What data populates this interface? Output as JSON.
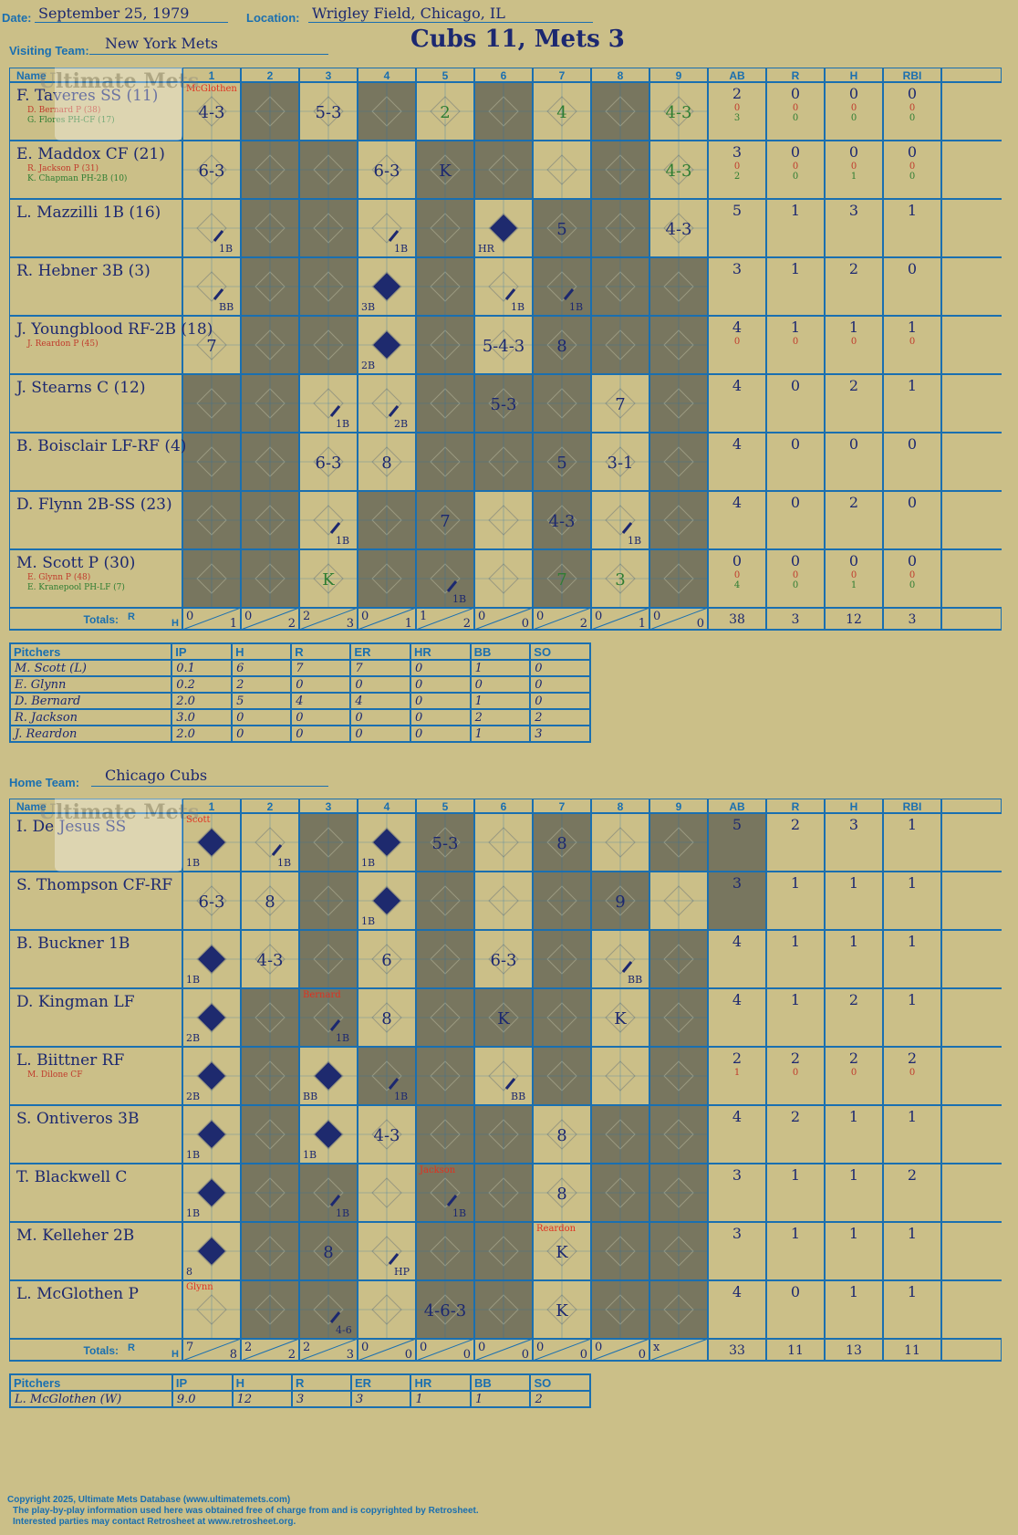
{
  "header": {
    "date_label": "Date:",
    "date": "September 25, 1979",
    "location_label": "Location:",
    "location": "Wrigley Field, Chicago, IL",
    "visiting_label": "Visiting Team:",
    "visiting_team": "New York Mets",
    "home_label": "Home Team:",
    "home_team": "Chicago Cubs",
    "final": "Cubs 11, Mets 3",
    "watermark": "Ultimate Mets Database ultimatemets.com"
  },
  "grid_headers": {
    "name": "Name",
    "innings": [
      "1",
      "2",
      "3",
      "4",
      "5",
      "6",
      "7",
      "8",
      "9"
    ],
    "stats": [
      "AB",
      "R",
      "H",
      "RBI"
    ],
    "totals": "Totals:",
    "r": "R",
    "h": "H"
  },
  "visitors": {
    "batters": [
      {
        "name": "F. Taveres SS (11)",
        "subs": [
          "D. Bernard P (38)",
          "G. Flores PH-CF (17)"
        ],
        "stats": [
          [
            "2",
            "0",
            "0",
            "0"
          ],
          [
            "0",
            "0",
            "0",
            "0"
          ],
          [
            "3",
            "0",
            "0",
            "0"
          ]
        ]
      },
      {
        "name": "E. Maddox CF (21)",
        "subs": [
          "R. Jackson P (31)",
          "K. Chapman PH-2B (10)"
        ],
        "stats": [
          [
            "3",
            "0",
            "0",
            "0"
          ],
          [
            "0",
            "0",
            "0",
            "0"
          ],
          [
            "2",
            "0",
            "1",
            "0"
          ]
        ]
      },
      {
        "name": "L. Mazzilli 1B (16)",
        "subs": [],
        "stats": [
          [
            "5",
            "1",
            "3",
            "1"
          ]
        ]
      },
      {
        "name": "R. Hebner 3B (3)",
        "subs": [],
        "stats": [
          [
            "3",
            "1",
            "2",
            "0"
          ]
        ]
      },
      {
        "name": "J. Youngblood RF-2B (18)",
        "subs": [
          "J. Reardon P (45)"
        ],
        "stats": [
          [
            "4",
            "1",
            "1",
            "1"
          ],
          [
            "0",
            "0",
            "0",
            "0"
          ]
        ]
      },
      {
        "name": "J. Stearns C (12)",
        "subs": [],
        "stats": [
          [
            "4",
            "0",
            "2",
            "1"
          ]
        ]
      },
      {
        "name": "B. Boisclair LF-RF (4)",
        "subs": [],
        "stats": [
          [
            "4",
            "0",
            "0",
            "0"
          ]
        ]
      },
      {
        "name": "D. Flynn 2B-SS (23)",
        "subs": [],
        "stats": [
          [
            "4",
            "0",
            "2",
            "0"
          ]
        ]
      },
      {
        "name": "M. Scott P (30)",
        "subs": [
          "E. Glynn P (48)",
          "E. Kranepool PH-LF (7)"
        ],
        "stats": [
          [
            "0",
            "0",
            "0",
            "0"
          ],
          [
            "0",
            "0",
            "0",
            "0"
          ],
          [
            "4",
            "0",
            "1",
            "0"
          ]
        ]
      }
    ],
    "totals": {
      "innings": [
        [
          "0",
          "1"
        ],
        [
          "0",
          "2"
        ],
        [
          "2",
          "3"
        ],
        [
          "0",
          "1"
        ],
        [
          "1",
          "2"
        ],
        [
          "0",
          "0"
        ],
        [
          "0",
          "2"
        ],
        [
          "0",
          "1"
        ],
        [
          "0",
          "0"
        ]
      ],
      "stats": [
        "38",
        "3",
        "12",
        "3"
      ]
    },
    "pitchers": [
      [
        "M. Scott (L)",
        "0.1",
        "6",
        "7",
        "7",
        "0",
        "1",
        "0"
      ],
      [
        "E. Glynn",
        "0.2",
        "2",
        "0",
        "0",
        "0",
        "0",
        "0"
      ],
      [
        "D. Bernard",
        "2.0",
        "5",
        "4",
        "4",
        "0",
        "1",
        "0"
      ],
      [
        "R. Jackson",
        "3.0",
        "0",
        "0",
        "0",
        "0",
        "2",
        "2"
      ],
      [
        "J. Reardon",
        "2.0",
        "0",
        "0",
        "0",
        "0",
        "1",
        "3"
      ]
    ]
  },
  "home": {
    "batters": [
      {
        "name": "I. De Jesus SS",
        "subs": [],
        "stats": [
          [
            "5",
            "2",
            "3",
            "1"
          ]
        ]
      },
      {
        "name": "S. Thompson CF-RF",
        "subs": [],
        "stats": [
          [
            "3",
            "1",
            "1",
            "1"
          ]
        ]
      },
      {
        "name": "B. Buckner 1B",
        "subs": [],
        "stats": [
          [
            "4",
            "1",
            "1",
            "1"
          ]
        ]
      },
      {
        "name": "D. Kingman LF",
        "subs": [],
        "stats": [
          [
            "4",
            "1",
            "2",
            "1"
          ]
        ]
      },
      {
        "name": "L. Biittner RF",
        "subs": [
          "M. Dilone CF"
        ],
        "stats": [
          [
            "2",
            "2",
            "2",
            "2"
          ],
          [
            "1",
            "0",
            "0",
            "0"
          ]
        ]
      },
      {
        "name": "S. Ontiveros 3B",
        "subs": [],
        "stats": [
          [
            "4",
            "2",
            "1",
            "1"
          ]
        ]
      },
      {
        "name": "T. Blackwell C",
        "subs": [],
        "stats": [
          [
            "3",
            "1",
            "1",
            "2"
          ]
        ]
      },
      {
        "name": "M. Kelleher 2B",
        "subs": [],
        "stats": [
          [
            "3",
            "1",
            "1",
            "1"
          ]
        ]
      },
      {
        "name": "L. McGlothen P",
        "subs": [],
        "stats": [
          [
            "4",
            "0",
            "1",
            "1"
          ]
        ]
      }
    ],
    "totals": {
      "innings": [
        [
          "7",
          "8"
        ],
        [
          "2",
          "2"
        ],
        [
          "2",
          "3"
        ],
        [
          "0",
          "0"
        ],
        [
          "0",
          "0"
        ],
        [
          "0",
          "0"
        ],
        [
          "0",
          "0"
        ],
        [
          "0",
          "0"
        ],
        [
          "x",
          ""
        ]
      ],
      "stats": [
        "33",
        "11",
        "13",
        "11"
      ]
    },
    "pitchers": [
      [
        "L. McGlothen (W)",
        "9.0",
        "12",
        "3",
        "3",
        "1",
        "1",
        "2"
      ]
    ]
  },
  "pitcher_headers": [
    "Pitchers",
    "IP",
    "H",
    "R",
    "ER",
    "HR",
    "BB",
    "SO"
  ],
  "visitor_cells": {
    "dark": [
      [
        0,
        1
      ],
      [
        0,
        3
      ],
      [
        0,
        5
      ],
      [
        0,
        7
      ],
      [
        1,
        1
      ],
      [
        1,
        2
      ],
      [
        1,
        4
      ],
      [
        1,
        5
      ],
      [
        1,
        7
      ],
      [
        2,
        1
      ],
      [
        2,
        2
      ],
      [
        2,
        4
      ],
      [
        2,
        6
      ],
      [
        2,
        7
      ],
      [
        3,
        1
      ],
      [
        3,
        2
      ],
      [
        3,
        4
      ],
      [
        3,
        6
      ],
      [
        3,
        7
      ],
      [
        3,
        8
      ],
      [
        4,
        1
      ],
      [
        4,
        2
      ],
      [
        4,
        4
      ],
      [
        4,
        6
      ],
      [
        4,
        7
      ],
      [
        4,
        8
      ],
      [
        5,
        0
      ],
      [
        5,
        1
      ],
      [
        5,
        4
      ],
      [
        5,
        5
      ],
      [
        5,
        6
      ],
      [
        5,
        8
      ],
      [
        6,
        0
      ],
      [
        6,
        1
      ],
      [
        6,
        4
      ],
      [
        6,
        5
      ],
      [
        6,
        6
      ],
      [
        6,
        8
      ],
      [
        7,
        0
      ],
      [
        7,
        1
      ],
      [
        7,
        3
      ],
      [
        7,
        4
      ],
      [
        7,
        6
      ],
      [
        7,
        8
      ],
      [
        8,
        0
      ],
      [
        8,
        1
      ],
      [
        8,
        3
      ],
      [
        8,
        4
      ],
      [
        8,
        6
      ],
      [
        8,
        8
      ]
    ],
    "marks": [
      {
        "r": 0,
        "c": 0,
        "t": "4-3"
      },
      {
        "r": 0,
        "c": 2,
        "t": "5-3"
      },
      {
        "r": 0,
        "c": 4,
        "t": "2",
        "g": true
      },
      {
        "r": 0,
        "c": 6,
        "t": "4",
        "g": true
      },
      {
        "r": 0,
        "c": 8,
        "t": "4-3",
        "g": true
      },
      {
        "r": 1,
        "c": 0,
        "t": "6-3"
      },
      {
        "r": 1,
        "c": 3,
        "t": "6-3"
      },
      {
        "r": 1,
        "c": 4,
        "t": "K"
      },
      {
        "r": 1,
        "c": 8,
        "t": "4-3",
        "g": true
      },
      {
        "r": 2,
        "c": 6,
        "t": "5"
      },
      {
        "r": 2,
        "c": 8,
        "t": "4-3"
      },
      {
        "r": 4,
        "c": 0,
        "t": "7"
      },
      {
        "r": 4,
        "c": 5,
        "t": "5-4-3"
      },
      {
        "r": 4,
        "c": 6,
        "t": "8"
      },
      {
        "r": 5,
        "c": 5,
        "t": "5-3"
      },
      {
        "r": 5,
        "c": 7,
        "t": "7"
      },
      {
        "r": 6,
        "c": 2,
        "t": "6-3"
      },
      {
        "r": 6,
        "c": 3,
        "t": "8"
      },
      {
        "r": 6,
        "c": 6,
        "t": "5"
      },
      {
        "r": 6,
        "c": 7,
        "t": "3-1"
      },
      {
        "r": 7,
        "c": 4,
        "t": "7"
      },
      {
        "r": 7,
        "c": 6,
        "t": "4-3"
      },
      {
        "r": 8,
        "c": 2,
        "t": "K",
        "g": true
      },
      {
        "r": 8,
        "c": 6,
        "t": "7",
        "g": true
      },
      {
        "r": 8,
        "c": 7,
        "t": "3",
        "g": true
      }
    ],
    "hits": [
      {
        "r": 2,
        "c": 0,
        "t": "1B"
      },
      {
        "r": 2,
        "c": 3,
        "t": "1B"
      },
      {
        "r": 3,
        "c": 0,
        "t": "BB"
      },
      {
        "r": 3,
        "c": 5,
        "t": "1B"
      },
      {
        "r": 3,
        "c": 6,
        "t": "1B"
      },
      {
        "r": 5,
        "c": 2,
        "t": "1B"
      },
      {
        "r": 5,
        "c": 3,
        "t": "2B"
      },
      {
        "r": 7,
        "c": 2,
        "t": "1B"
      },
      {
        "r": 7,
        "c": 7,
        "t": "1B"
      },
      {
        "r": 8,
        "c": 4,
        "t": "1B"
      }
    ],
    "runs": [
      {
        "r": 2,
        "c": 5,
        "t": "HR"
      },
      {
        "r": 3,
        "c": 3,
        "t": "3B"
      },
      {
        "r": 4,
        "c": 3,
        "t": "2B"
      }
    ],
    "notes": [
      {
        "r": 0,
        "c": 0,
        "t": "McGlothen"
      }
    ]
  },
  "home_cells": {
    "dark": [
      [
        0,
        2
      ],
      [
        0,
        4
      ],
      [
        0,
        6
      ],
      [
        0,
        8
      ],
      [
        0,
        9
      ],
      [
        1,
        2
      ],
      [
        1,
        4
      ],
      [
        1,
        6
      ],
      [
        1,
        7
      ],
      [
        1,
        9
      ],
      [
        2,
        2
      ],
      [
        2,
        4
      ],
      [
        2,
        6
      ],
      [
        2,
        8
      ],
      [
        3,
        1
      ],
      [
        3,
        2
      ],
      [
        3,
        4
      ],
      [
        3,
        5
      ],
      [
        3,
        6
      ],
      [
        3,
        8
      ],
      [
        4,
        1
      ],
      [
        4,
        3
      ],
      [
        4,
        4
      ],
      [
        4,
        6
      ],
      [
        4,
        8
      ],
      [
        5,
        1
      ],
      [
        5,
        4
      ],
      [
        5,
        5
      ],
      [
        5,
        7
      ],
      [
        5,
        8
      ],
      [
        6,
        1
      ],
      [
        6,
        2
      ],
      [
        6,
        4
      ],
      [
        6,
        5
      ],
      [
        6,
        7
      ],
      [
        6,
        8
      ],
      [
        7,
        1
      ],
      [
        7,
        2
      ],
      [
        7,
        4
      ],
      [
        7,
        5
      ],
      [
        7,
        7
      ],
      [
        7,
        8
      ],
      [
        8,
        1
      ],
      [
        8,
        2
      ],
      [
        8,
        4
      ],
      [
        8,
        5
      ],
      [
        8,
        7
      ],
      [
        8,
        8
      ]
    ],
    "marks": [
      {
        "r": 0,
        "c": 4,
        "t": "5-3"
      },
      {
        "r": 0,
        "c": 6,
        "t": "8"
      },
      {
        "r": 1,
        "c": 0,
        "t": "6-3"
      },
      {
        "r": 1,
        "c": 1,
        "t": "8"
      },
      {
        "r": 1,
        "c": 7,
        "t": "9"
      },
      {
        "r": 2,
        "c": 1,
        "t": "4-3"
      },
      {
        "r": 2,
        "c": 3,
        "t": "6"
      },
      {
        "r": 2,
        "c": 5,
        "t": "6-3"
      },
      {
        "r": 3,
        "c": 3,
        "t": "8"
      },
      {
        "r": 3,
        "c": 5,
        "t": "K"
      },
      {
        "r": 3,
        "c": 7,
        "t": "K"
      },
      {
        "r": 5,
        "c": 3,
        "t": "4-3"
      },
      {
        "r": 5,
        "c": 6,
        "t": "8"
      },
      {
        "r": 6,
        "c": 6,
        "t": "8"
      },
      {
        "r": 7,
        "c": 2,
        "t": "8"
      },
      {
        "r": 7,
        "c": 6,
        "t": "K"
      },
      {
        "r": 8,
        "c": 4,
        "t": "4-6-3"
      },
      {
        "r": 8,
        "c": 6,
        "t": "K"
      }
    ],
    "hits": [
      {
        "r": 0,
        "c": 1,
        "t": "1B"
      },
      {
        "r": 2,
        "c": 7,
        "t": "BB"
      },
      {
        "r": 3,
        "c": 2,
        "t": "1B"
      },
      {
        "r": 4,
        "c": 3,
        "t": "1B"
      },
      {
        "r": 4,
        "c": 5,
        "t": "BB"
      },
      {
        "r": 6,
        "c": 2,
        "t": "1B"
      },
      {
        "r": 6,
        "c": 4,
        "t": "1B"
      },
      {
        "r": 7,
        "c": 3,
        "t": "HP"
      },
      {
        "r": 8,
        "c": 2,
        "t": "4-6"
      }
    ],
    "runs": [
      {
        "r": 0,
        "c": 0,
        "t": "1B"
      },
      {
        "r": 0,
        "c": 3,
        "t": "1B"
      },
      {
        "r": 1,
        "c": 3,
        "t": "1B"
      },
      {
        "r": 2,
        "c": 0,
        "t": "1B"
      },
      {
        "r": 3,
        "c": 0,
        "t": "2B"
      },
      {
        "r": 4,
        "c": 0,
        "t": "2B"
      },
      {
        "r": 4,
        "c": 2,
        "t": "BB"
      },
      {
        "r": 5,
        "c": 0,
        "t": "1B"
      },
      {
        "r": 5,
        "c": 2,
        "t": "1B"
      },
      {
        "r": 6,
        "c": 0,
        "t": "1B"
      },
      {
        "r": 7,
        "c": 0,
        "t": "8"
      }
    ],
    "notes": [
      {
        "r": 0,
        "c": 0,
        "t": "Scott"
      },
      {
        "r": 3,
        "c": 2,
        "t": "Bernard"
      },
      {
        "r": 6,
        "c": 4,
        "t": "Jackson"
      },
      {
        "r": 7,
        "c": 6,
        "t": "Reardon"
      },
      {
        "r": 8,
        "c": 0,
        "t": "Glynn"
      }
    ]
  },
  "footer": [
    "Copyright 2025, Ultimate Mets Database (www.ultimatemets.com)",
    "The play-by-play information used here was obtained free of charge from and is copyrighted by Retrosheet.",
    "Interested parties may contact Retrosheet at www.retrosheet.org."
  ]
}
